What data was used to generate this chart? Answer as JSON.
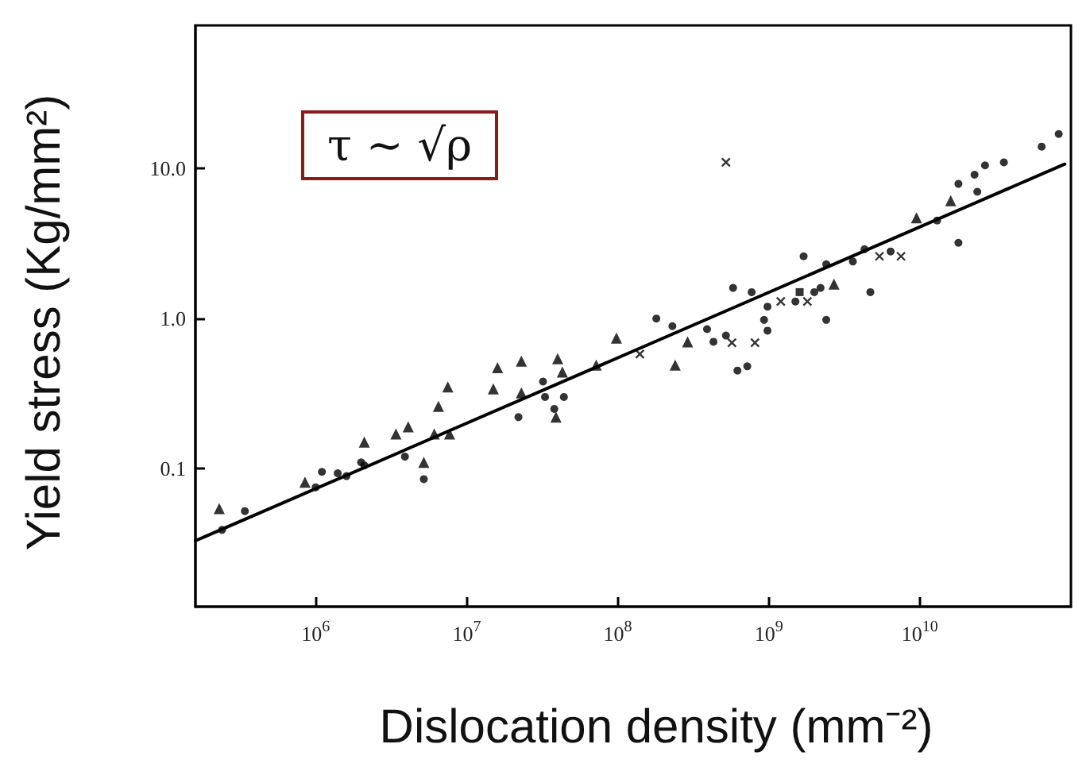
{
  "chart_data": {
    "type": "scatter",
    "xlabel": "Dislocation density (mm⁻²)",
    "ylabel": "Yield stress (Kg/mm²)",
    "annotations": [
      "τ ∼ √ρ"
    ],
    "log": "xy",
    "grid": false,
    "xlim": [
      160000,
      100000000000
    ],
    "ylim": [
      0.012,
      90
    ],
    "xticks": [
      {
        "value": 1000000,
        "label": "10$^{6}$"
      },
      {
        "value": 10000000,
        "label": "10$^{7}$"
      },
      {
        "value": 100000000,
        "label": "10$^{8}$"
      },
      {
        "value": 1000000000,
        "label": "10$^{9}$"
      },
      {
        "value": 10000000000,
        "label": "10$^{10}$"
      }
    ],
    "yticks": [
      0.1,
      {
        "value": 1,
        "label": "1.0"
      },
      {
        "value": 10,
        "label": "10.0"
      }
    ],
    "series": [
      {
        "color": "#000000",
        "marker": "circle",
        "x": [
          340000,
          240000,
          1000000,
          1100000,
          1400000,
          1600000,
          2000000,
          2100000,
          22000000,
          32000000,
          33000000,
          390000000,
          620000000,
          720000000,
          930000000,
          980000000,
          980000000,
          1500000000,
          2000000000,
          2200000000,
          2400000000,
          2400000000,
          3600000000,
          4300000000,
          6400000000,
          13000000000,
          18000000000,
          18000000000,
          24000000000,
          23000000000,
          36000000000,
          64000000000
        ],
        "values": [
          0.052,
          0.039,
          0.075,
          0.095,
          0.093,
          0.089,
          0.11,
          0.105,
          0.22,
          0.38,
          0.3,
          0.85,
          0.45,
          0.48,
          0.98,
          0.83,
          1.2,
          1.3,
          1.5,
          1.6,
          0.98,
          2.3,
          2.4,
          2.9,
          2.8,
          4.5,
          3.2,
          7.9,
          7.0,
          9.1,
          11,
          14
        ]
      },
      {
        "color": "#000000",
        "marker": "circle",
        "x": [
          3900000,
          5200000,
          44000000,
          38000000,
          180000000,
          230000000,
          430000000,
          520000000,
          580000000,
          770000000,
          1700000000,
          4700000000,
          27000000000,
          83000000000
        ],
        "values": [
          0.12,
          0.085,
          0.3,
          0.25,
          1.0,
          0.89,
          0.7,
          0.77,
          1.6,
          1.5,
          2.6,
          1.5,
          10.5,
          17
        ]
      },
      {
        "color": "#000000",
        "marker": "triangle",
        "x": [
          230000,
          850000,
          2100000,
          3400000,
          4100000,
          6100000,
          7700000,
          6500000,
          7500000,
          15000000,
          16000000,
          23000000,
          23000000,
          40000000,
          72000000,
          290000000,
          5200000,
          39000000,
          43000000,
          98000000,
          240000000,
          2700000000,
          9500000000,
          16000000000
        ],
        "values": [
          0.054,
          0.081,
          0.15,
          0.17,
          0.19,
          0.17,
          0.17,
          0.26,
          0.35,
          0.34,
          0.47,
          0.52,
          0.32,
          0.54,
          0.49,
          0.7,
          0.11,
          0.22,
          0.44,
          0.74,
          0.49,
          1.7,
          4.7,
          6.1
        ]
      },
      {
        "color": "#000000",
        "marker": "cross",
        "x": [
          520000000,
          140000000,
          570000000,
          810000000,
          1200000000,
          1800000000,
          5400000000,
          7500000000
        ],
        "values": [
          11,
          0.58,
          0.69,
          0.69,
          1.3,
          1.3,
          2.6,
          2.6
        ]
      },
      {
        "color": "#000000",
        "marker": "square",
        "x": [
          1600000000
        ],
        "values": [
          1.5
        ]
      },
      {
        "type": "line",
        "color": "#000000",
        "marker": "none",
        "line_style": "solid",
        "x": [
          160000,
          91000000000
        ],
        "values": [
          0.033,
          10.7
        ]
      }
    ]
  }
}
